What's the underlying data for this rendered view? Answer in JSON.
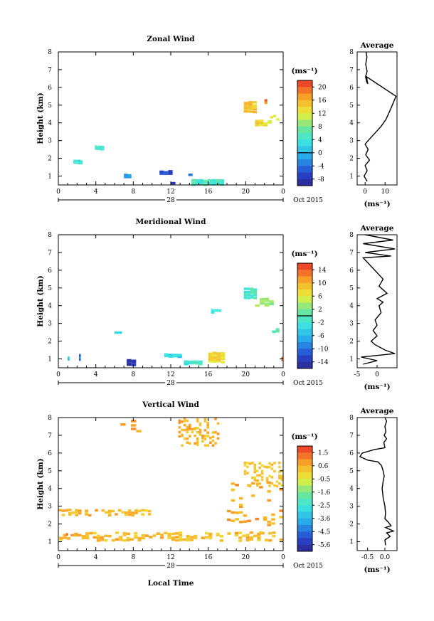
{
  "figure": {
    "date_label": "Oct 2015",
    "day_label": "28",
    "x_axis_label": "Local Time",
    "y_axis_label": "Height (km)",
    "unit_label": "(ms⁻¹)",
    "average_title": "Average",
    "average_unit_label": "(ms⁻¹)",
    "x_ticks": [
      "0",
      "4",
      "8",
      "12",
      "16",
      "20",
      "0"
    ],
    "y_ticks": [
      "1",
      "2",
      "3",
      "4",
      "5",
      "6",
      "7",
      "8"
    ]
  },
  "chart_data": [
    {
      "type": "heatmap",
      "title": "Zonal Wind",
      "xlabel": "",
      "ylabel": "Height (km)",
      "xlim": [
        0,
        24
      ],
      "ylim": [
        0.5,
        8
      ],
      "colorbar": {
        "ticks": [
          "20",
          "16",
          "12",
          "8",
          "4",
          "0",
          "-4",
          "-8"
        ],
        "range": [
          -10,
          22
        ],
        "zero_line": 0
      },
      "cells": [
        [
          1.6,
          2.6,
          4,
          1.8,
          0.2,
          2.6,
          4
        ],
        [
          3.9,
          4.9,
          6,
          2.6,
          0.2,
          2.6,
          4
        ],
        [
          7.0,
          7.8,
          2,
          1.0,
          0.2,
          1.1,
          -2
        ],
        [
          10.8,
          12.2,
          3,
          1.2,
          0.2,
          1.1,
          -6
        ],
        [
          14.2,
          17.7,
          8,
          0.65,
          0.3,
          1.05,
          5
        ],
        [
          13.4,
          16.2,
          6,
          1.1,
          0.1,
          0.6,
          -3
        ],
        [
          11.5,
          12.5,
          2,
          0.6,
          0.1,
          0.8,
          -7
        ],
        [
          19.8,
          21.2,
          3,
          4.9,
          0.6,
          1.0,
          15
        ],
        [
          21.0,
          22.8,
          4,
          4.0,
          0.3,
          0.5,
          13
        ],
        [
          22.0,
          22.3,
          1,
          5.2,
          0.2,
          0.5,
          19
        ],
        [
          22.6,
          23.6,
          3,
          4.3,
          0.3,
          0.5,
          11
        ],
        [
          22.6,
          23.3,
          2,
          1.0,
          0.1,
          0.5,
          2
        ]
      ],
      "average": {
        "xlim": [
          -4,
          16
        ],
        "xticks": [
          "0",
          "10"
        ],
        "points": [
          [
            0.5,
            8.0
          ],
          [
            0.9,
            7.7
          ],
          [
            0.3,
            7.3
          ],
          [
            1.0,
            6.9
          ],
          [
            0.2,
            6.6
          ],
          [
            0.8,
            6.3
          ],
          [
            1.4,
            6.2
          ],
          [
            1.0,
            6.4
          ],
          [
            0.7,
            6.6
          ],
          [
            15.5,
            5.5
          ],
          [
            14.0,
            5.1
          ],
          [
            12.5,
            4.7
          ],
          [
            10.5,
            4.2
          ],
          [
            8.0,
            3.8
          ],
          [
            1.5,
            3.0
          ],
          [
            0.0,
            2.8
          ],
          [
            1.5,
            2.5
          ],
          [
            0.3,
            2.2
          ],
          [
            2.2,
            1.9
          ],
          [
            0.0,
            1.6
          ],
          [
            1.0,
            1.3
          ],
          [
            -0.5,
            1.0
          ],
          [
            1.0,
            0.7
          ]
        ]
      }
    },
    {
      "type": "heatmap",
      "title": "Meridional Wind",
      "xlabel": "",
      "ylabel": "Height (km)",
      "xlim": [
        0,
        24
      ],
      "ylim": [
        0.5,
        8
      ],
      "colorbar": {
        "ticks": [
          "14",
          "10",
          "6",
          "2",
          "-2",
          "-6",
          "-10",
          "-14"
        ],
        "range": [
          -16,
          16
        ],
        "zero_line": 0
      },
      "cells": [
        [
          1.0,
          1.2,
          1,
          1.0,
          0.2,
          1.0,
          -6
        ],
        [
          2.2,
          2.4,
          1,
          1.1,
          0.3,
          1.0,
          -10
        ],
        [
          7.3,
          8.3,
          2,
          0.8,
          0.4,
          1.0,
          -14
        ],
        [
          11.3,
          13.2,
          4,
          1.2,
          0.2,
          1.0,
          -4
        ],
        [
          16.0,
          17.8,
          4,
          1.1,
          0.6,
          1.0,
          7
        ],
        [
          13.4,
          15.4,
          4,
          0.8,
          0.2,
          1.0,
          -2
        ],
        [
          19.8,
          21.2,
          4,
          4.7,
          0.6,
          1.0,
          -1
        ],
        [
          21.0,
          23.0,
          4,
          4.2,
          0.5,
          0.6,
          3
        ],
        [
          5.2,
          6.8,
          2,
          2.5,
          0.1,
          0.6,
          -3
        ],
        [
          16.3,
          17.4,
          3,
          3.7,
          0.2,
          0.6,
          -1
        ],
        [
          22.8,
          23.6,
          2,
          2.6,
          0.2,
          0.6,
          0
        ],
        [
          23.8,
          24.0,
          1,
          1.0,
          0.2,
          1.0,
          12
        ]
      ],
      "average": {
        "xlim": [
          -5,
          5
        ],
        "xticks": [
          "-5",
          "0"
        ],
        "points": [
          [
            -3.0,
            8.0
          ],
          [
            4.0,
            7.7
          ],
          [
            -3.5,
            7.5
          ],
          [
            4.5,
            7.2
          ],
          [
            -3.0,
            7.0
          ],
          [
            3.5,
            6.8
          ],
          [
            -3.5,
            6.7
          ],
          [
            1.5,
            5.5
          ],
          [
            0.5,
            5.1
          ],
          [
            2.5,
            4.7
          ],
          [
            0.0,
            4.4
          ],
          [
            1.5,
            4.2
          ],
          [
            0.5,
            4.0
          ],
          [
            1.0,
            3.6
          ],
          [
            -0.5,
            3.2
          ],
          [
            0.0,
            2.9
          ],
          [
            -1.0,
            2.6
          ],
          [
            0.0,
            2.3
          ],
          [
            -1.5,
            2.0
          ],
          [
            -0.5,
            1.8
          ],
          [
            2.0,
            1.5
          ],
          [
            4.5,
            1.3
          ],
          [
            -4.0,
            1.1
          ],
          [
            0.0,
            0.9
          ],
          [
            -3.5,
            0.7
          ]
        ]
      }
    },
    {
      "type": "heatmap",
      "title": "Vertical Wind",
      "xlabel": "Local Time",
      "ylabel": "Height (km)",
      "xlim": [
        0,
        24
      ],
      "ylim": [
        0.5,
        8
      ],
      "colorbar": {
        "ticks": [
          "1.5",
          "0.6",
          "-0.5",
          "-1.6",
          "-2.5",
          "-3.6",
          "-4.5",
          "-5.6"
        ],
        "range": [
          -6.0,
          2.0
        ],
        "zero_line": null
      },
      "cells": [
        [
          0.1,
          24.0,
          60,
          1.3,
          0.5,
          0.5,
          0.3
        ],
        [
          0.0,
          9.9,
          28,
          2.65,
          0.35,
          0.5,
          0.35
        ],
        [
          5.5,
          10.0,
          8,
          7.3,
          1.2,
          0.08,
          0.6
        ],
        [
          12.8,
          17.2,
          16,
          7.2,
          1.6,
          0.3,
          0.4
        ],
        [
          19.8,
          24.0,
          16,
          4.8,
          1.4,
          0.3,
          0.1
        ],
        [
          18.0,
          24.0,
          14,
          3.0,
          3.0,
          0.12,
          0.6
        ],
        [
          9.8,
          13.5,
          5,
          2.55,
          0.15,
          0.15,
          0.7
        ],
        [
          0.8,
          1.3,
          2,
          1.4,
          0.1,
          0.6,
          1.8
        ],
        [
          18.3,
          18.6,
          1,
          2.0,
          0.15,
          0.6,
          1.2
        ]
      ],
      "average": {
        "xlim": [
          -0.8,
          0.35
        ],
        "xticks": [
          "-0.5",
          "0.0"
        ],
        "points": [
          [
            0.0,
            8.0
          ],
          [
            0.05,
            7.8
          ],
          [
            0.0,
            7.5
          ],
          [
            0.03,
            7.2
          ],
          [
            -0.02,
            7.0
          ],
          [
            0.05,
            6.8
          ],
          [
            -0.03,
            6.6
          ],
          [
            0.0,
            6.3
          ],
          [
            -0.3,
            6.2
          ],
          [
            -0.65,
            6.0
          ],
          [
            -0.72,
            5.8
          ],
          [
            -0.5,
            5.6
          ],
          [
            -0.2,
            5.5
          ],
          [
            -0.1,
            5.3
          ],
          [
            -0.05,
            5.0
          ],
          [
            -0.02,
            4.7
          ],
          [
            -0.05,
            4.4
          ],
          [
            -0.08,
            4.0
          ],
          [
            -0.05,
            3.5
          ],
          [
            0.0,
            3.0
          ],
          [
            0.02,
            2.6
          ],
          [
            0.0,
            2.3
          ],
          [
            0.1,
            2.1
          ],
          [
            0.18,
            1.9
          ],
          [
            0.02,
            1.8
          ],
          [
            0.25,
            1.6
          ],
          [
            0.05,
            1.5
          ],
          [
            0.15,
            1.3
          ],
          [
            0.0,
            1.1
          ],
          [
            0.02,
            0.8
          ]
        ]
      }
    }
  ]
}
